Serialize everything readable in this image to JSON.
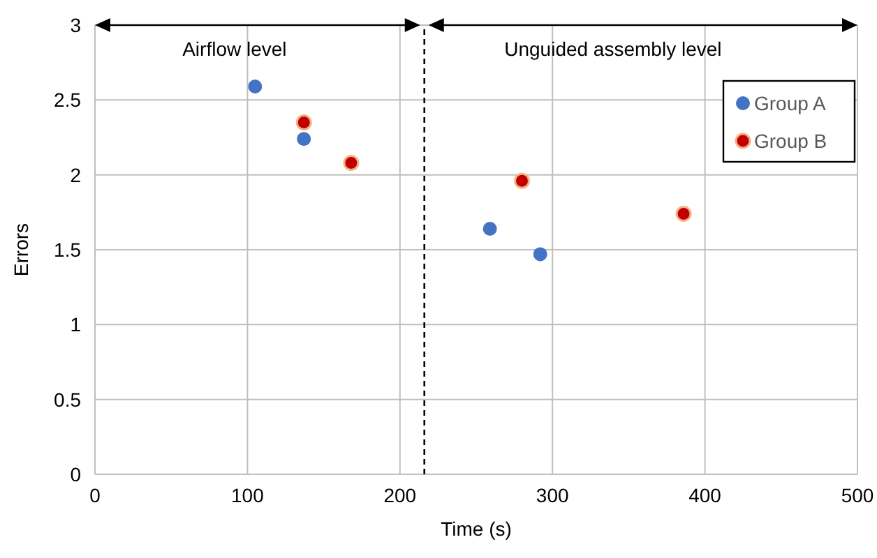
{
  "chart_data": {
    "type": "scatter",
    "xlabel": "Time (s)",
    "ylabel": "Errors",
    "xlim": [
      0,
      500
    ],
    "xticks": [
      0,
      100,
      200,
      300,
      400,
      500
    ],
    "ylim": [
      0,
      3
    ],
    "yticks": [
      0,
      0.5,
      1,
      1.5,
      2,
      2.5,
      3
    ],
    "grid": true,
    "legend": "top right",
    "marker": "circle",
    "series": [
      {
        "name": "Group A",
        "color": "#4472c4",
        "x": [
          105,
          137,
          259,
          292
        ],
        "values": [
          2.59,
          2.24,
          1.64,
          1.47
        ]
      },
      {
        "name": "Group B",
        "color": "#c00000",
        "x": [
          137,
          168,
          280,
          386
        ],
        "values": [
          2.35,
          2.08,
          1.96,
          1.74
        ]
      }
    ],
    "ref_lines": [
      {
        "axis": "x",
        "value": 216,
        "color": "#000000",
        "line_style": "dashed"
      }
    ],
    "annotations": [
      "Airflow level",
      "Unguided assembly level"
    ]
  }
}
